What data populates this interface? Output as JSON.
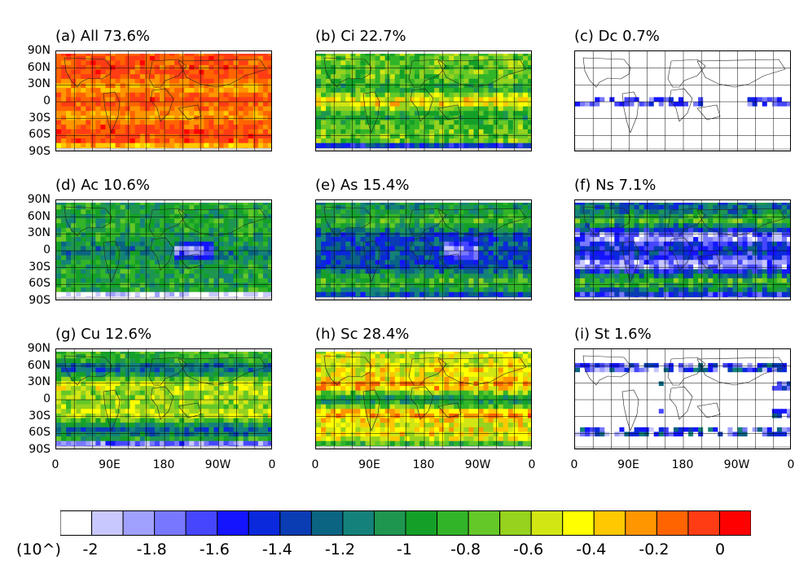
{
  "panels": [
    {
      "id": "a",
      "title": "(a) All 73.6%",
      "regime": "all"
    },
    {
      "id": "b",
      "title": "(b) Ci 22.7%",
      "regime": "ci"
    },
    {
      "id": "c",
      "title": "(c) Dc 0.7%",
      "regime": "dc"
    },
    {
      "id": "d",
      "title": "(d) Ac 10.6%",
      "regime": "ac"
    },
    {
      "id": "e",
      "title": "(e) As 15.4%",
      "regime": "as"
    },
    {
      "id": "f",
      "title": "(f) Ns 7.1%",
      "regime": "ns"
    },
    {
      "id": "g",
      "title": "(g) Cu 12.6%",
      "regime": "cu"
    },
    {
      "id": "h",
      "title": "(h) Sc 28.4%",
      "regime": "sc"
    },
    {
      "id": "i",
      "title": "(i) St 1.6%",
      "regime": "st"
    }
  ],
  "lat_labels": [
    "90N",
    "60N",
    "30N",
    "0",
    "30S",
    "60S",
    "90S"
  ],
  "lon_labels": [
    "0",
    "90E",
    "180",
    "90W",
    "0"
  ],
  "colorbar": {
    "prefix": "(10^)",
    "labels": [
      "-2",
      "-1.8",
      "-1.6",
      "-1.4",
      "-1.2",
      "-1",
      "-0.8",
      "-0.6",
      "-0.4",
      "-0.2",
      "0"
    ],
    "colors": [
      "#ffffff",
      "#c8c8ff",
      "#a0a0ff",
      "#7878ff",
      "#4646ff",
      "#1414ff",
      "#0a28dc",
      "#0a3cb4",
      "#0a6482",
      "#14827a",
      "#1e9650",
      "#14a028",
      "#32b428",
      "#64c828",
      "#96d21e",
      "#d2e614",
      "#ffff00",
      "#ffc800",
      "#ff9600",
      "#ff6400",
      "#ff3c14",
      "#ff0000"
    ]
  }
}
